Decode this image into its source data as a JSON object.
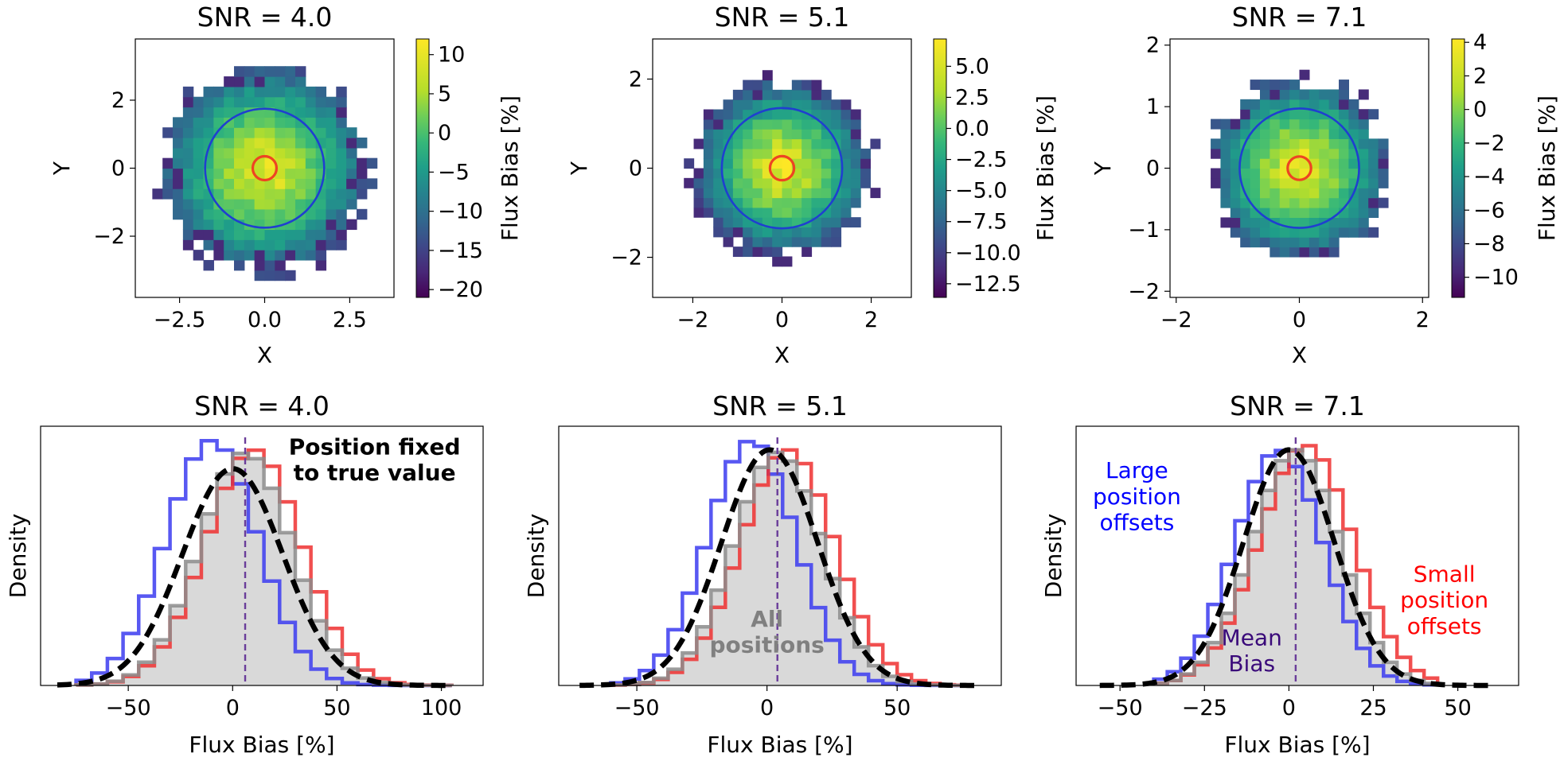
{
  "chart_data": [
    {
      "type": "heatmap",
      "title": "SNR = 4.0",
      "xlabel": "X",
      "ylabel": "Y",
      "xlim": [
        -3.8,
        3.8
      ],
      "ylim": [
        -3.8,
        3.8
      ],
      "xticks": [
        -2.5,
        0.0,
        2.5
      ],
      "xtick_labels": [
        "−2.5",
        "0.0",
        "2.5"
      ],
      "yticks": [
        -2,
        0,
        2
      ],
      "ytick_labels": [
        "−2",
        "0",
        "2"
      ],
      "disk_radius": 3.0,
      "cell_size": 0.3,
      "blue_circle_radius": 1.75,
      "red_circle_radius": 0.35,
      "colorbar": {
        "label": "Flux Bias [%]",
        "range": [
          -21,
          12
        ],
        "ticks": [
          10,
          5,
          0,
          -5,
          -10,
          -15,
          -20
        ],
        "tick_labels": [
          "10",
          "5",
          "0",
          "−5",
          "−10",
          "−15",
          "−20"
        ]
      },
      "center_value": 11,
      "edge_value": -12
    },
    {
      "type": "heatmap",
      "title": "SNR = 5.1",
      "xlabel": "X",
      "ylabel": "Y",
      "xlim": [
        -2.9,
        2.9
      ],
      "ylim": [
        -2.9,
        2.9
      ],
      "xticks": [
        -2,
        0,
        2
      ],
      "xtick_labels": [
        "−2",
        "0",
        "2"
      ],
      "yticks": [
        -2,
        0,
        2
      ],
      "ytick_labels": [
        "−2",
        "0",
        "2"
      ],
      "disk_radius": 2.0,
      "cell_size": 0.22,
      "blue_circle_radius": 1.35,
      "red_circle_radius": 0.27,
      "colorbar": {
        "label": "Flux Bias [%]",
        "range": [
          -13.6,
          7.2
        ],
        "ticks": [
          5.0,
          2.5,
          0.0,
          -2.5,
          -5.0,
          -7.5,
          -10.0,
          -12.5
        ],
        "tick_labels": [
          "5.0",
          "2.5",
          "0.0",
          "−2.5",
          "−5.0",
          "−7.5",
          "−10.0",
          "−12.5"
        ]
      },
      "center_value": 6.8,
      "edge_value": -9
    },
    {
      "type": "heatmap",
      "title": "SNR = 7.1",
      "xlabel": "X",
      "ylabel": "Y",
      "xlim": [
        -2.1,
        2.1
      ],
      "ylim": [
        -2.1,
        2.1
      ],
      "xticks": [
        -2,
        0,
        2
      ],
      "xtick_labels": [
        "−2",
        "0",
        "2"
      ],
      "yticks": [
        -2,
        -1,
        0,
        1,
        2
      ],
      "ytick_labels": [
        "−2",
        "−1",
        "0",
        "1",
        "2"
      ],
      "disk_radius": 1.45,
      "cell_size": 0.16,
      "blue_circle_radius": 0.97,
      "red_circle_radius": 0.19,
      "colorbar": {
        "label": "Flux Bias [%]",
        "range": [
          -11.2,
          4.2
        ],
        "ticks": [
          4,
          2,
          0,
          -2,
          -4,
          -6,
          -8,
          -10
        ],
        "tick_labels": [
          "4",
          "2",
          "0",
          "−2",
          "−4",
          "−6",
          "−8",
          "−10"
        ]
      },
      "center_value": 3.8,
      "edge_value": -7
    },
    {
      "type": "histogram",
      "title": "SNR = 4.0",
      "xlabel": "Flux Bias [%]",
      "ylabel": "Density",
      "xlim": [
        -92,
        120
      ],
      "xticks": [
        -50,
        0,
        50,
        100
      ],
      "xtick_labels": [
        "−50",
        "0",
        "50",
        "100"
      ],
      "ylim": [
        0,
        1.1
      ],
      "bin_width": 7.5,
      "range": [
        -75,
        105
      ],
      "series": [
        {
          "mean": -10,
          "sd": 22,
          "peak": 1.04,
          "color": "#3b3bf0"
        },
        {
          "mean": 6,
          "sd": 22,
          "peak": 0.99,
          "color": "#8c8c8c",
          "fill": "#d9d9d9"
        },
        {
          "mean": 10,
          "sd": 23,
          "peak": 1.0,
          "color": "#ee3030"
        }
      ],
      "kde": {
        "mean": 0,
        "sd": 24,
        "peak": 0.92,
        "range": [
          -84,
          105
        ]
      },
      "mean_bias": 6,
      "annotations": [
        {
          "text": "Position fixed",
          "x": 68,
          "y": 0.98,
          "color": "#000000",
          "bold": true
        },
        {
          "text": "to true value",
          "x": 68,
          "y": 0.87,
          "color": "#000000",
          "bold": true
        }
      ]
    },
    {
      "type": "histogram",
      "title": "SNR = 5.1",
      "xlabel": "Flux Bias [%]",
      "ylabel": "Density",
      "xlim": [
        -80,
        90
      ],
      "xticks": [
        -50,
        0,
        50
      ],
      "xtick_labels": [
        "−50",
        "0",
        "50"
      ],
      "ylim": [
        0,
        1.1
      ],
      "bin_width": 5.5,
      "range": [
        -60,
        80
      ],
      "series": [
        {
          "mean": -6,
          "sd": 17,
          "peak": 1.04,
          "color": "#3b3bf0"
        },
        {
          "mean": 4,
          "sd": 17,
          "peak": 0.99,
          "color": "#8c8c8c",
          "fill": "#d9d9d9"
        },
        {
          "mean": 8,
          "sd": 18,
          "peak": 1.0,
          "color": "#ee3030"
        }
      ],
      "kde": {
        "mean": 1,
        "sd": 18.5,
        "peak": 1.0,
        "range": [
          -72,
          80
        ]
      },
      "mean_bias": 4,
      "annotations": [
        {
          "text": "All",
          "x": 0,
          "y": 0.25,
          "color": "#808080",
          "bold": true
        },
        {
          "text": "positions",
          "x": 0,
          "y": 0.14,
          "color": "#808080",
          "bold": true
        }
      ]
    },
    {
      "type": "histogram",
      "title": "SNR = 7.1",
      "xlabel": "Flux Bias [%]",
      "ylabel": "Density",
      "xlim": [
        -63,
        68
      ],
      "xticks": [
        -50,
        -25,
        0,
        25,
        50
      ],
      "xtick_labels": [
        "−50",
        "−25",
        "0",
        "25",
        "50"
      ],
      "ylim": [
        0,
        1.1
      ],
      "bin_width": 4,
      "range": [
        -40,
        45
      ],
      "series": [
        {
          "mean": -3,
          "sd": 13,
          "peak": 1.0,
          "color": "#3b3bf0"
        },
        {
          "mean": 2,
          "sd": 13,
          "peak": 1.0,
          "color": "#8c8c8c",
          "fill": "#d9d9d9"
        },
        {
          "mean": 5,
          "sd": 14,
          "peak": 1.02,
          "color": "#ee3030"
        }
      ],
      "kde": {
        "mean": 0,
        "sd": 13.5,
        "peak": 1.0,
        "range": [
          -56,
          60
        ]
      },
      "mean_bias": 2,
      "annotations": [
        {
          "text": "Large",
          "x": -45,
          "y": 0.88,
          "color": "#0000ff",
          "bold": false
        },
        {
          "text": "position",
          "x": -45,
          "y": 0.77,
          "color": "#0000ff",
          "bold": false
        },
        {
          "text": "offsets",
          "x": -45,
          "y": 0.66,
          "color": "#0000ff",
          "bold": false
        },
        {
          "text": "Small",
          "x": 46,
          "y": 0.44,
          "color": "#ff0000",
          "bold": false
        },
        {
          "text": "position",
          "x": 46,
          "y": 0.33,
          "color": "#ff0000",
          "bold": false
        },
        {
          "text": "offsets",
          "x": 46,
          "y": 0.22,
          "color": "#ff0000",
          "bold": false
        },
        {
          "text": "Mean",
          "x": -11,
          "y": 0.17,
          "color": "#3a0a7a",
          "bold": false
        },
        {
          "text": "Bias",
          "x": -11,
          "y": 0.06,
          "color": "#3a0a7a",
          "bold": false
        }
      ]
    }
  ]
}
